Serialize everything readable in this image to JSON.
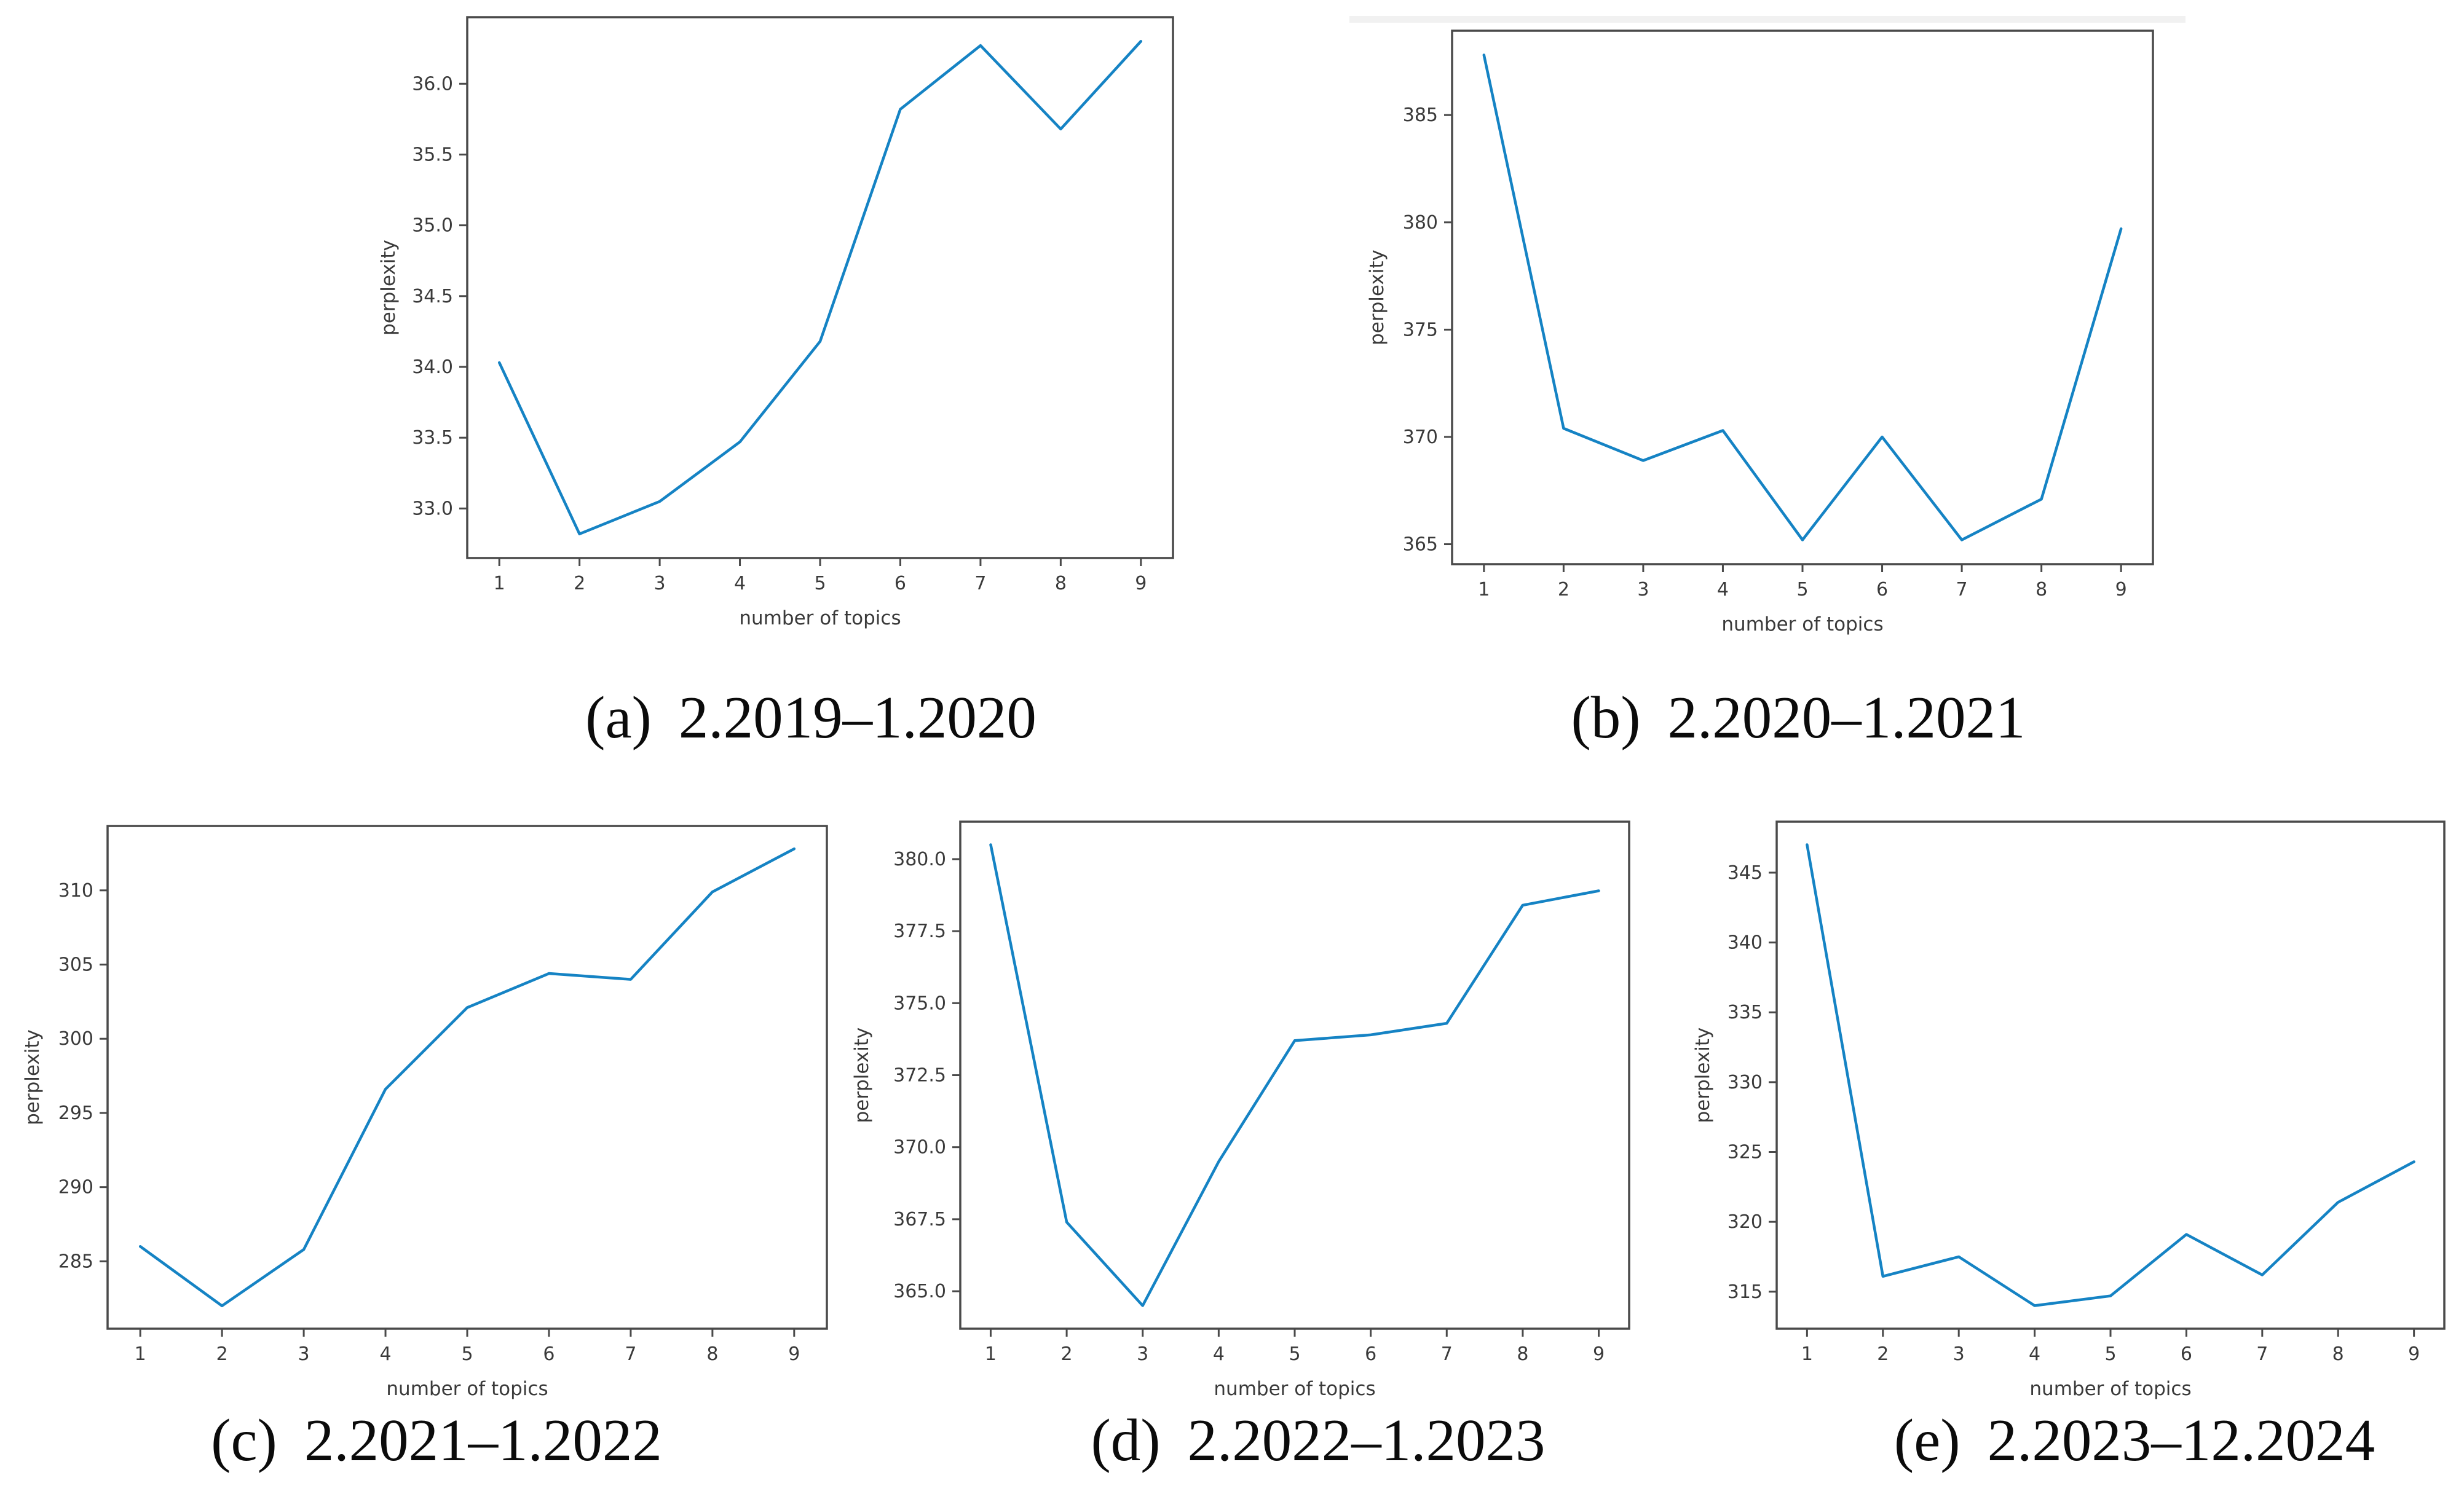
{
  "figure": {
    "background": "#ffffff"
  },
  "colors": {
    "line": "#1583c4",
    "spine": "#4a4a4a",
    "tick": "#4a4a4a",
    "text": "#3a3a3a",
    "artifact_strip": "#f1f1f1"
  },
  "axis": {
    "xlabel": "number of topics",
    "ylabel": "perplexity"
  },
  "captions": [
    {
      "id": "a",
      "label": "(a)",
      "range": "2.2019–1.2020"
    },
    {
      "id": "b",
      "label": "(b)",
      "range": "2.2020–1.2021"
    },
    {
      "id": "c",
      "label": "(c)",
      "range": "2.2021–1.2022"
    },
    {
      "id": "d",
      "label": "(d)",
      "range": "2.2022–1.2023"
    },
    {
      "id": "e",
      "label": "(e)",
      "range": "2.2023–12.2024"
    }
  ],
  "chart_data": [
    {
      "id": "a",
      "type": "line",
      "title": "(a) 2.2019–1.2020",
      "xlabel": "number of topics",
      "ylabel": "perplexity",
      "x": [
        1,
        2,
        3,
        4,
        5,
        6,
        7,
        8,
        9
      ],
      "y": [
        34.03,
        32.82,
        33.05,
        33.47,
        34.18,
        35.82,
        36.27,
        35.68,
        36.3
      ],
      "xlim": [
        0.6,
        9.4
      ],
      "ylim": [
        32.65,
        36.47
      ],
      "xticks": [
        1,
        2,
        3,
        4,
        5,
        6,
        7,
        8,
        9
      ],
      "xtick_labels": [
        "1",
        "2",
        "3",
        "4",
        "5",
        "6",
        "7",
        "8",
        "9"
      ],
      "yticks": [
        33.0,
        33.5,
        34.0,
        34.5,
        35.0,
        35.5,
        36.0
      ],
      "ytick_labels": [
        "33.0",
        "33.5",
        "34.0",
        "34.5",
        "35.0",
        "35.5",
        "36.0"
      ],
      "grid": false,
      "legend": null
    },
    {
      "id": "b",
      "type": "line",
      "title": "(b) 2.2020–1.2021",
      "xlabel": "number of topics",
      "ylabel": "perplexity",
      "x": [
        1,
        2,
        3,
        4,
        5,
        6,
        7,
        8,
        9
      ],
      "y": [
        387.8,
        370.4,
        368.9,
        370.3,
        365.2,
        370.0,
        365.2,
        367.1,
        379.7
      ],
      "xlim": [
        0.6,
        9.4
      ],
      "ylim": [
        364.07,
        388.93
      ],
      "xticks": [
        1,
        2,
        3,
        4,
        5,
        6,
        7,
        8,
        9
      ],
      "xtick_labels": [
        "1",
        "2",
        "3",
        "4",
        "5",
        "6",
        "7",
        "8",
        "9"
      ],
      "yticks": [
        365,
        370,
        375,
        380,
        385
      ],
      "ytick_labels": [
        "365",
        "370",
        "375",
        "380",
        "385"
      ],
      "grid": false,
      "legend": null
    },
    {
      "id": "c",
      "type": "line",
      "title": "(c) 2.2021–1.2022",
      "xlabel": "number of topics",
      "ylabel": "perplexity",
      "x": [
        1,
        2,
        3,
        4,
        5,
        6,
        7,
        8,
        9
      ],
      "y": [
        286.0,
        282.0,
        285.8,
        296.6,
        302.1,
        304.4,
        304.0,
        309.9,
        312.8
      ],
      "xlim": [
        0.6,
        9.4
      ],
      "ylim": [
        280.46,
        314.34
      ],
      "xticks": [
        1,
        2,
        3,
        4,
        5,
        6,
        7,
        8,
        9
      ],
      "xtick_labels": [
        "1",
        "2",
        "3",
        "4",
        "5",
        "6",
        "7",
        "8",
        "9"
      ],
      "yticks": [
        285,
        290,
        295,
        300,
        305,
        310
      ],
      "ytick_labels": [
        "285",
        "290",
        "295",
        "300",
        "305",
        "310"
      ],
      "grid": false,
      "legend": null
    },
    {
      "id": "d",
      "type": "line",
      "title": "(d) 2.2022–1.2023",
      "xlabel": "number of topics",
      "ylabel": "perplexity",
      "x": [
        1,
        2,
        3,
        4,
        5,
        6,
        7,
        8,
        9
      ],
      "y": [
        380.5,
        367.4,
        364.5,
        369.5,
        373.7,
        373.9,
        374.3,
        378.4,
        378.9
      ],
      "xlim": [
        0.6,
        9.4
      ],
      "ylim": [
        363.7,
        381.3
      ],
      "xticks": [
        1,
        2,
        3,
        4,
        5,
        6,
        7,
        8,
        9
      ],
      "xtick_labels": [
        "1",
        "2",
        "3",
        "4",
        "5",
        "6",
        "7",
        "8",
        "9"
      ],
      "yticks": [
        365.0,
        367.5,
        370.0,
        372.5,
        375.0,
        377.5,
        380.0
      ],
      "ytick_labels": [
        "365.0",
        "367.5",
        "370.0",
        "372.5",
        "375.0",
        "377.5",
        "380.0"
      ],
      "grid": false,
      "legend": null
    },
    {
      "id": "e",
      "type": "line",
      "title": "(e) 2.2023–12.2024",
      "xlabel": "number of topics",
      "ylabel": "perplexity",
      "x": [
        1,
        2,
        3,
        4,
        5,
        6,
        7,
        8,
        9
      ],
      "y": [
        347.0,
        316.1,
        317.5,
        314.0,
        314.7,
        319.1,
        316.2,
        321.4,
        324.3
      ],
      "xlim": [
        0.6,
        9.4
      ],
      "ylim": [
        312.35,
        348.65
      ],
      "xticks": [
        1,
        2,
        3,
        4,
        5,
        6,
        7,
        8,
        9
      ],
      "xtick_labels": [
        "1",
        "2",
        "3",
        "4",
        "5",
        "6",
        "7",
        "8",
        "9"
      ],
      "yticks": [
        315,
        320,
        325,
        330,
        335,
        340,
        345
      ],
      "ytick_labels": [
        "315",
        "320",
        "325",
        "330",
        "335",
        "340",
        "345"
      ],
      "grid": false,
      "legend": null
    }
  ]
}
